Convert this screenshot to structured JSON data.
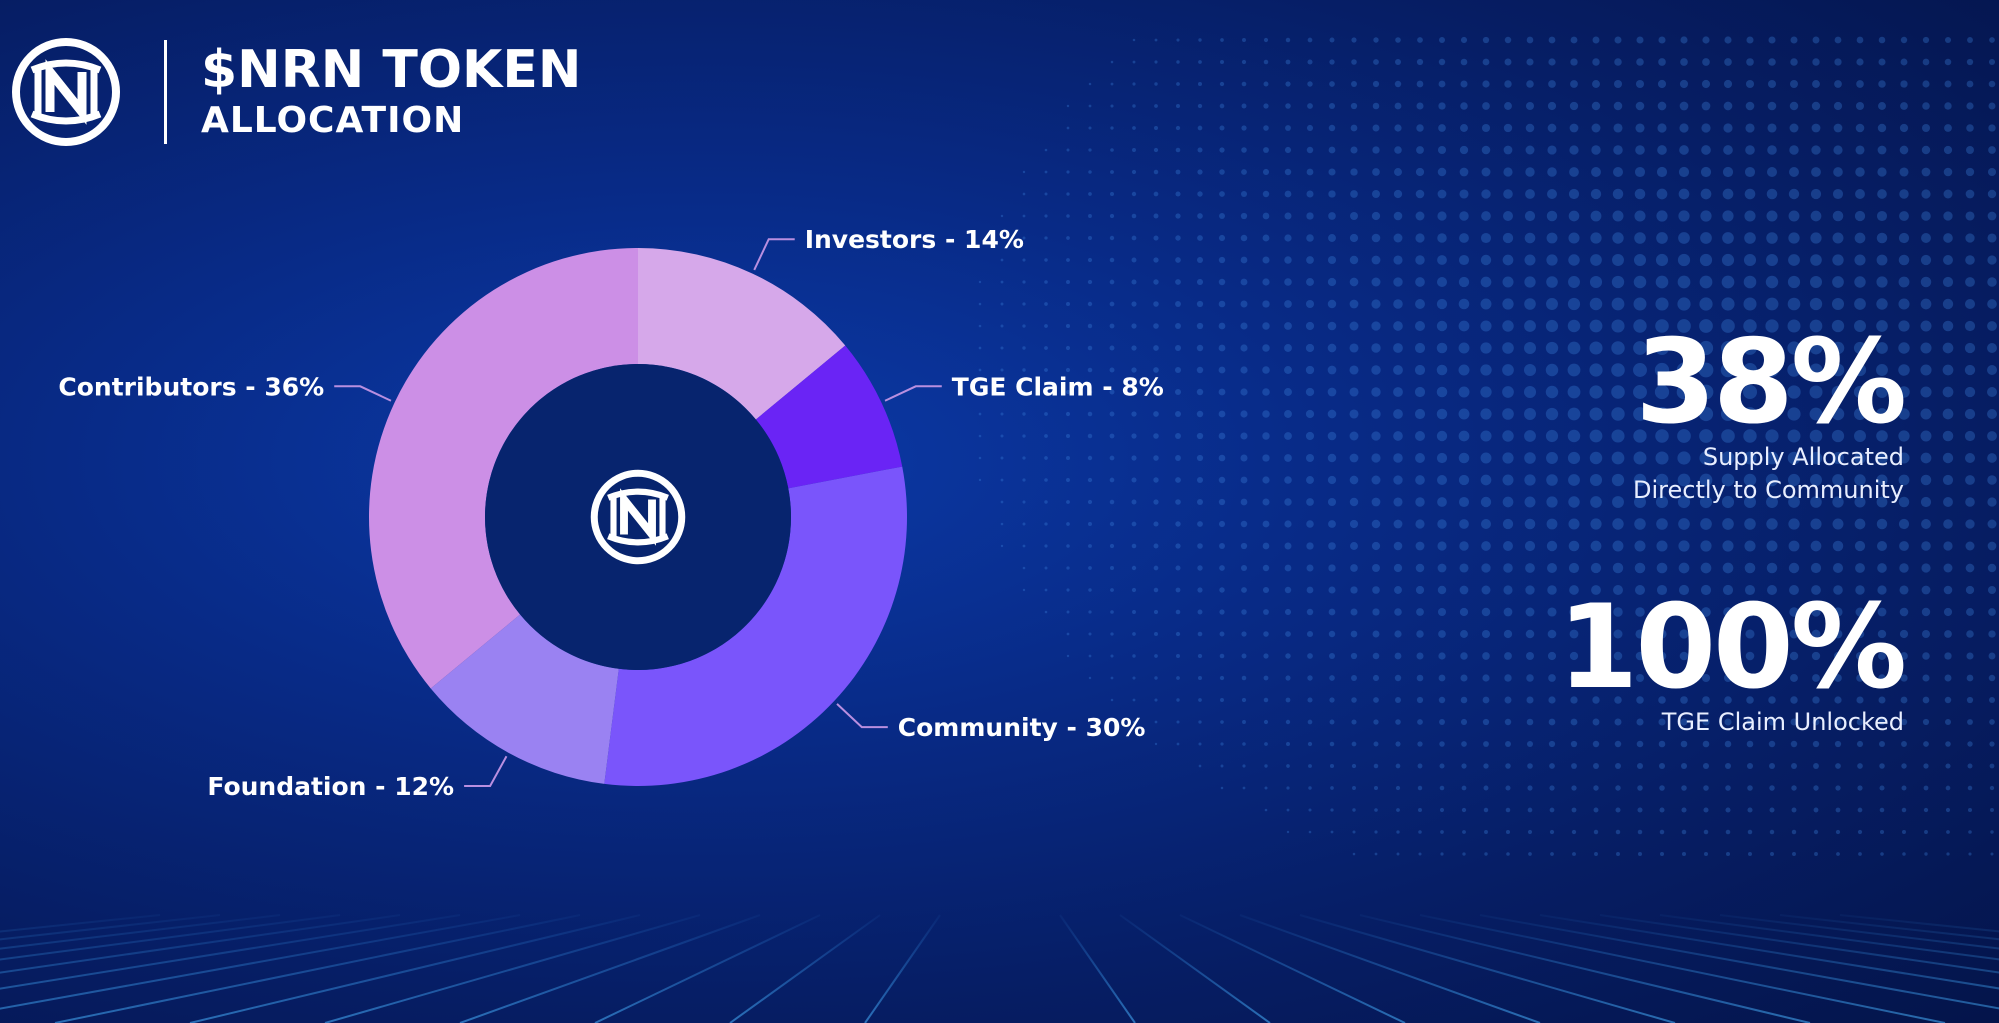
{
  "header": {
    "title": "$NRN TOKEN",
    "subtitle": "ALLOCATION",
    "logo_icon": "nrn-logo-icon"
  },
  "chart_data": {
    "type": "pie",
    "title": "",
    "donut": true,
    "center_icon": "nrn-logo-icon",
    "categories": [
      "Investors",
      "TGE Claim",
      "Community",
      "Foundation",
      "Contributors"
    ],
    "values": [
      14,
      8,
      30,
      12,
      36
    ],
    "labels": [
      "Investors - 14%",
      "TGE Claim - 8%",
      "Community - 30%",
      "Foundation - 12%",
      "Contributors - 36%"
    ],
    "colors": [
      "#d6a8ea",
      "#6a24f5",
      "#7a55fb",
      "#9a82f2",
      "#cc8fe6"
    ]
  },
  "stats": [
    {
      "value": "38%",
      "label_lines": [
        "Supply Allocated",
        "Directly to Community"
      ]
    },
    {
      "value": "100%",
      "label_lines": [
        "TGE Claim Unlocked"
      ]
    }
  ],
  "colors": {
    "background": "#082a86",
    "donut_hole": "#07246e",
    "leader_line": "#b98fe0"
  }
}
